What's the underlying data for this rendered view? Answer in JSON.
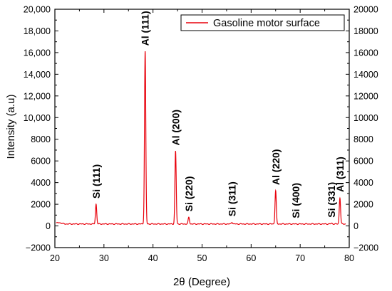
{
  "chart_data": {
    "type": "line",
    "xlabel": "2θ (Degree)",
    "ylabel": "Intensity (a.u)",
    "xlim": [
      20,
      80
    ],
    "ylim": [
      -2000,
      20000
    ],
    "x_ticks": [
      20,
      30,
      40,
      50,
      60,
      70,
      80
    ],
    "x_tick_labels": [
      "20",
      "30",
      "40",
      "50",
      "60",
      "70",
      "80"
    ],
    "y_ticks": [
      -2000,
      0,
      2000,
      4000,
      6000,
      8000,
      10000,
      12000,
      14000,
      16000,
      18000,
      20000
    ],
    "y_tick_labels": [
      "−2000",
      "0",
      "2000",
      "4000",
      "6000",
      "8000",
      "10,000",
      "12,000",
      "14,000",
      "16,000",
      "18,000",
      "20,000"
    ],
    "right_y_tick_labels": [
      "−2000",
      "0",
      "2000",
      "4000",
      "6000",
      "8000",
      "10000",
      "12000",
      "14000",
      "16000",
      "18000",
      "20000"
    ],
    "grid": false,
    "legend_position": "top-right",
    "series": [
      {
        "name": "Gasoline motor surface",
        "color": "#e8000b",
        "baseline": 180,
        "peaks": [
          {
            "x": 28.4,
            "y": 2000,
            "label": "Si (111)"
          },
          {
            "x": 38.4,
            "y": 16100,
            "label": "Al (111)"
          },
          {
            "x": 44.6,
            "y": 6900,
            "label": "Al (200)"
          },
          {
            "x": 47.3,
            "y": 800,
            "label": "Si (220)"
          },
          {
            "x": 56.1,
            "y": 350,
            "label": "Si (311)"
          },
          {
            "x": 65.0,
            "y": 3250,
            "label": "Al (220)"
          },
          {
            "x": 69.1,
            "y": 180,
            "label": "Si (400)"
          },
          {
            "x": 76.4,
            "y": 250,
            "label": "Si (331)"
          },
          {
            "x": 78.1,
            "y": 2600,
            "label": "Al (311)"
          }
        ]
      }
    ]
  }
}
